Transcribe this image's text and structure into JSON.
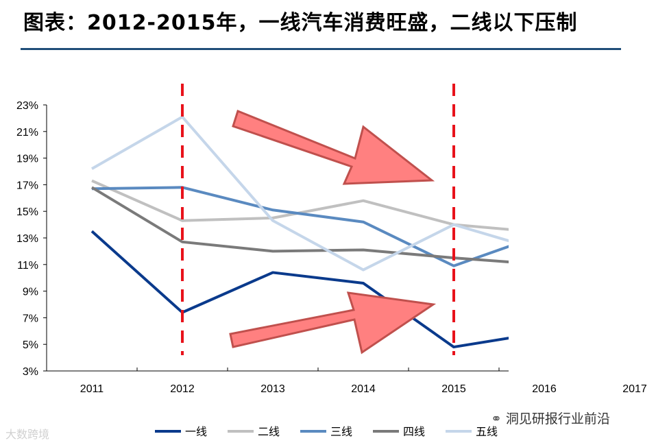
{
  "header": {
    "title": "图表：2012-2015年，一线汽车消费旺盛，二线以下压制"
  },
  "watermark_left": "大数跨境",
  "watermark_right": {
    "text": "洞见研报行业前沿",
    "icon": "wechat-icon"
  },
  "chart_data": {
    "type": "line",
    "x": [
      2011,
      2012,
      2013,
      2014,
      2015,
      2016
    ],
    "xticks": [
      "2011",
      "2012",
      "2013",
      "2014",
      "2015",
      "2016",
      "2017"
    ],
    "yticks": [
      "3%",
      "5%",
      "7%",
      "9%",
      "11%",
      "13%",
      "15%",
      "17%",
      "19%",
      "21%",
      "23%"
    ],
    "ylim": [
      3,
      23
    ],
    "y_unit": "%",
    "series": [
      {
        "name": "一线",
        "color": "#0a3a8c",
        "values": [
          13.5,
          7.4,
          10.4,
          9.6,
          4.8,
          5.9
        ]
      },
      {
        "name": "二线",
        "color": "#c0c0c0",
        "values": [
          17.3,
          14.3,
          14.5,
          15.8,
          14.0,
          13.4
        ]
      },
      {
        "name": "三线",
        "color": "#5a8ac0",
        "values": [
          16.7,
          16.8,
          15.1,
          14.2,
          10.9,
          13.3
        ]
      },
      {
        "name": "四线",
        "color": "#7a7a7a",
        "values": [
          16.8,
          12.7,
          12.0,
          12.1,
          11.5,
          11.0
        ]
      },
      {
        "name": "五线",
        "color": "#c5d6ea",
        "values": [
          18.2,
          22.1,
          14.3,
          10.6,
          14.0,
          12.0
        ]
      }
    ],
    "markers": [
      {
        "x": 2012,
        "style": "dashed",
        "color": "#e8121b"
      },
      {
        "x": 2015,
        "style": "dashed",
        "color": "#e8121b"
      }
    ],
    "annotations": [
      {
        "type": "arrow",
        "direction": "down-right",
        "fill": "#ff8080",
        "stroke": "#c0504d"
      },
      {
        "type": "arrow",
        "direction": "up-right",
        "fill": "#ff8080",
        "stroke": "#c0504d"
      }
    ],
    "legend_position": "bottom",
    "grid": false
  }
}
